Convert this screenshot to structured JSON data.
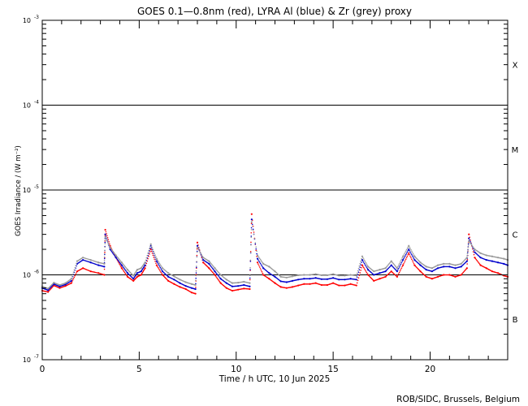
{
  "chart_data": {
    "type": "scatter",
    "title": "GOES 0.1—0.8nm (red), LYRA Al (blue) & Zr (grey) proxy",
    "xlabel": "Time / h UTC, 10 Jun 2025",
    "ylabel": "GOES Irradiance / (W m⁻²)",
    "x_range": [
      0,
      24
    ],
    "y_scale": "log",
    "y_range": [
      1e-07,
      0.001
    ],
    "x_ticks": [
      {
        "value": 0,
        "label": "0"
      },
      {
        "value": 5,
        "label": "5"
      },
      {
        "value": 10,
        "label": "10"
      },
      {
        "value": 15,
        "label": "15"
      },
      {
        "value": 20,
        "label": "20"
      }
    ],
    "y_ticks": [
      {
        "exp": -3,
        "label": "10",
        "sup": "-3"
      },
      {
        "exp": -4,
        "label": "10",
        "sup": "-4"
      },
      {
        "exp": -5,
        "label": "10",
        "sup": "-5"
      },
      {
        "exp": -6,
        "label": "10",
        "sup": "-6"
      },
      {
        "exp": -7,
        "label": "10",
        "sup": "-7"
      }
    ],
    "class_lines": [
      0.0001,
      1e-05,
      1e-06
    ],
    "flare_classes": [
      {
        "label": "X",
        "value": 0.0003
      },
      {
        "label": "M",
        "value": 3e-05
      },
      {
        "label": "C",
        "value": 3e-06
      },
      {
        "label": "B",
        "value": 3e-07
      }
    ],
    "series": [
      {
        "color": "#ff0000",
        "points": [
          [
            0,
            6.5e-07
          ],
          [
            0.3,
            6.3e-07
          ],
          [
            0.6,
            7.5e-07
          ],
          [
            0.9,
            7e-07
          ],
          [
            1.2,
            7.4e-07
          ],
          [
            1.5,
            8e-07
          ],
          [
            1.8,
            1.1e-06
          ],
          [
            2.1,
            1.2e-06
          ],
          [
            2.5,
            1.1e-06
          ],
          [
            2.9,
            1.05e-06
          ],
          [
            3.2,
            1e-06
          ],
          [
            3.25,
            3.4e-06
          ],
          [
            3.5,
            2.2e-06
          ],
          [
            3.8,
            1.6e-06
          ],
          [
            4.1,
            1.2e-06
          ],
          [
            4.4,
            9.5e-07
          ],
          [
            4.7,
            8.5e-07
          ],
          [
            4.9,
            9.5e-07
          ],
          [
            5.1,
            1e-06
          ],
          [
            5.3,
            1.2e-06
          ],
          [
            5.6,
            2e-06
          ],
          [
            5.9,
            1.3e-06
          ],
          [
            6.2,
            1e-06
          ],
          [
            6.5,
            8.5e-07
          ],
          [
            6.8,
            7.8e-07
          ],
          [
            7.1,
            7.2e-07
          ],
          [
            7.4,
            6.8e-07
          ],
          [
            7.7,
            6.2e-07
          ],
          [
            7.9,
            6e-07
          ],
          [
            8.0,
            2.4e-06
          ],
          [
            8.3,
            1.4e-06
          ],
          [
            8.6,
            1.2e-06
          ],
          [
            8.9,
            1e-06
          ],
          [
            9.2,
            8e-07
          ],
          [
            9.5,
            7e-07
          ],
          [
            9.8,
            6.5e-07
          ],
          [
            10.1,
            6.7e-07
          ],
          [
            10.4,
            6.9e-07
          ],
          [
            10.7,
            6.8e-07
          ],
          [
            10.8,
            5.2e-06
          ],
          [
            11.1,
            1.4e-06
          ],
          [
            11.4,
            1e-06
          ],
          [
            11.7,
            9e-07
          ],
          [
            12.0,
            8e-07
          ],
          [
            12.3,
            7.2e-07
          ],
          [
            12.6,
            7e-07
          ],
          [
            12.9,
            7.2e-07
          ],
          [
            13.2,
            7.5e-07
          ],
          [
            13.5,
            7.8e-07
          ],
          [
            13.8,
            7.8e-07
          ],
          [
            14.1,
            8e-07
          ],
          [
            14.4,
            7.6e-07
          ],
          [
            14.7,
            7.6e-07
          ],
          [
            15.0,
            8e-07
          ],
          [
            15.3,
            7.5e-07
          ],
          [
            15.6,
            7.5e-07
          ],
          [
            15.9,
            7.8e-07
          ],
          [
            16.2,
            7.5e-07
          ],
          [
            16.5,
            1.3e-06
          ],
          [
            16.8,
            1e-06
          ],
          [
            17.1,
            8.5e-07
          ],
          [
            17.4,
            9e-07
          ],
          [
            17.7,
            9.5e-07
          ],
          [
            18.0,
            1.1e-06
          ],
          [
            18.3,
            9.5e-07
          ],
          [
            18.6,
            1.3e-06
          ],
          [
            18.9,
            1.8e-06
          ],
          [
            19.2,
            1.3e-06
          ],
          [
            19.5,
            1.1e-06
          ],
          [
            19.8,
            9.5e-07
          ],
          [
            20.1,
            9e-07
          ],
          [
            20.4,
            9.5e-07
          ],
          [
            20.7,
            1e-06
          ],
          [
            21.0,
            1e-06
          ],
          [
            21.3,
            9.5e-07
          ],
          [
            21.6,
            1e-06
          ],
          [
            21.9,
            1.2e-06
          ],
          [
            22.0,
            3e-06
          ],
          [
            22.3,
            1.6e-06
          ],
          [
            22.6,
            1.3e-06
          ],
          [
            22.9,
            1.2e-06
          ],
          [
            23.2,
            1.1e-06
          ],
          [
            23.5,
            1.05e-06
          ],
          [
            23.8,
            9.8e-07
          ],
          [
            24.0,
            9.5e-07
          ]
        ]
      },
      {
        "color": "#0000cc",
        "points": [
          [
            0,
            7e-07
          ],
          [
            0.3,
            6.6e-07
          ],
          [
            0.6,
            7.8e-07
          ],
          [
            0.9,
            7.3e-07
          ],
          [
            1.2,
            7.7e-07
          ],
          [
            1.5,
            8.5e-07
          ],
          [
            1.8,
            1.35e-06
          ],
          [
            2.1,
            1.5e-06
          ],
          [
            2.5,
            1.4e-06
          ],
          [
            2.9,
            1.3e-06
          ],
          [
            3.2,
            1.25e-06
          ],
          [
            3.25,
            3e-06
          ],
          [
            3.5,
            2e-06
          ],
          [
            3.8,
            1.6e-06
          ],
          [
            4.1,
            1.3e-06
          ],
          [
            4.4,
            1.05e-06
          ],
          [
            4.7,
            9e-07
          ],
          [
            4.9,
            1.05e-06
          ],
          [
            5.1,
            1.1e-06
          ],
          [
            5.3,
            1.3e-06
          ],
          [
            5.6,
            2.2e-06
          ],
          [
            5.9,
            1.45e-06
          ],
          [
            6.2,
            1.1e-06
          ],
          [
            6.5,
            9.5e-07
          ],
          [
            6.8,
            8.8e-07
          ],
          [
            7.1,
            8e-07
          ],
          [
            7.4,
            7.4e-07
          ],
          [
            7.7,
            7e-07
          ],
          [
            7.9,
            6.8e-07
          ],
          [
            8.0,
            2.2e-06
          ],
          [
            8.3,
            1.5e-06
          ],
          [
            8.6,
            1.35e-06
          ],
          [
            8.9,
            1.1e-06
          ],
          [
            9.2,
            9e-07
          ],
          [
            9.5,
            8e-07
          ],
          [
            9.8,
            7.3e-07
          ],
          [
            10.1,
            7.4e-07
          ],
          [
            10.4,
            7.6e-07
          ],
          [
            10.7,
            7.3e-07
          ],
          [
            10.8,
            4.5e-06
          ],
          [
            11.1,
            1.55e-06
          ],
          [
            11.4,
            1.2e-06
          ],
          [
            11.7,
            1.05e-06
          ],
          [
            12.0,
            9.5e-07
          ],
          [
            12.3,
            8.4e-07
          ],
          [
            12.6,
            8.2e-07
          ],
          [
            12.9,
            8.5e-07
          ],
          [
            13.2,
            8.8e-07
          ],
          [
            13.5,
            9e-07
          ],
          [
            13.8,
            9e-07
          ],
          [
            14.1,
            9.2e-07
          ],
          [
            14.4,
            8.9e-07
          ],
          [
            14.7,
            8.9e-07
          ],
          [
            15.0,
            9.2e-07
          ],
          [
            15.3,
            8.8e-07
          ],
          [
            15.6,
            8.8e-07
          ],
          [
            15.9,
            9e-07
          ],
          [
            16.2,
            8.8e-07
          ],
          [
            16.5,
            1.5e-06
          ],
          [
            16.8,
            1.15e-06
          ],
          [
            17.1,
            1e-06
          ],
          [
            17.4,
            1.05e-06
          ],
          [
            17.7,
            1.1e-06
          ],
          [
            18.0,
            1.3e-06
          ],
          [
            18.3,
            1.1e-06
          ],
          [
            18.6,
            1.5e-06
          ],
          [
            18.9,
            2e-06
          ],
          [
            19.2,
            1.5e-06
          ],
          [
            19.5,
            1.3e-06
          ],
          [
            19.8,
            1.15e-06
          ],
          [
            20.1,
            1.1e-06
          ],
          [
            20.4,
            1.2e-06
          ],
          [
            20.7,
            1.25e-06
          ],
          [
            21.0,
            1.25e-06
          ],
          [
            21.3,
            1.2e-06
          ],
          [
            21.6,
            1.25e-06
          ],
          [
            21.9,
            1.45e-06
          ],
          [
            22.0,
            2.7e-06
          ],
          [
            22.3,
            1.85e-06
          ],
          [
            22.6,
            1.6e-06
          ],
          [
            22.9,
            1.5e-06
          ],
          [
            23.2,
            1.45e-06
          ],
          [
            23.5,
            1.4e-06
          ],
          [
            23.8,
            1.35e-06
          ],
          [
            24.0,
            1.3e-06
          ]
        ]
      },
      {
        "color": "#999999",
        "points": [
          [
            0,
            7.3e-07
          ],
          [
            0.3,
            6.9e-07
          ],
          [
            0.6,
            8.1e-07
          ],
          [
            0.9,
            7.6e-07
          ],
          [
            1.2,
            8e-07
          ],
          [
            1.5,
            9e-07
          ],
          [
            1.8,
            1.45e-06
          ],
          [
            2.1,
            1.6e-06
          ],
          [
            2.5,
            1.5e-06
          ],
          [
            2.9,
            1.4e-06
          ],
          [
            3.2,
            1.35e-06
          ],
          [
            3.25,
            2.8e-06
          ],
          [
            3.5,
            2.1e-06
          ],
          [
            3.8,
            1.7e-06
          ],
          [
            4.1,
            1.4e-06
          ],
          [
            4.4,
            1.15e-06
          ],
          [
            4.7,
            9.8e-07
          ],
          [
            4.9,
            1.15e-06
          ],
          [
            5.1,
            1.2e-06
          ],
          [
            5.3,
            1.4e-06
          ],
          [
            5.6,
            2.3e-06
          ],
          [
            5.9,
            1.55e-06
          ],
          [
            6.2,
            1.2e-06
          ],
          [
            6.5,
            1.05e-06
          ],
          [
            6.8,
            9.6e-07
          ],
          [
            7.1,
            8.8e-07
          ],
          [
            7.4,
            8.2e-07
          ],
          [
            7.7,
            7.8e-07
          ],
          [
            7.9,
            7.6e-07
          ],
          [
            8.0,
            2.1e-06
          ],
          [
            8.3,
            1.6e-06
          ],
          [
            8.6,
            1.45e-06
          ],
          [
            8.9,
            1.2e-06
          ],
          [
            9.2,
            1e-06
          ],
          [
            9.5,
            8.8e-07
          ],
          [
            9.8,
            8e-07
          ],
          [
            10.1,
            8.1e-07
          ],
          [
            10.4,
            8.3e-07
          ],
          [
            10.7,
            8e-07
          ],
          [
            10.8,
            4.2e-06
          ],
          [
            11.1,
            1.7e-06
          ],
          [
            11.4,
            1.35e-06
          ],
          [
            11.7,
            1.25e-06
          ],
          [
            12.0,
            1.1e-06
          ],
          [
            12.3,
            9.5e-07
          ],
          [
            12.6,
            9.3e-07
          ],
          [
            12.9,
            9.6e-07
          ],
          [
            13.2,
            9.9e-07
          ],
          [
            13.5,
            1e-06
          ],
          [
            13.8,
            1e-06
          ],
          [
            14.1,
            1.02e-06
          ],
          [
            14.4,
            9.9e-07
          ],
          [
            14.7,
            9.9e-07
          ],
          [
            15.0,
            1.02e-06
          ],
          [
            15.3,
            9.8e-07
          ],
          [
            15.6,
            9.8e-07
          ],
          [
            15.9,
            1e-06
          ],
          [
            16.2,
            9.8e-07
          ],
          [
            16.5,
            1.65e-06
          ],
          [
            16.8,
            1.25e-06
          ],
          [
            17.1,
            1.1e-06
          ],
          [
            17.4,
            1.15e-06
          ],
          [
            17.7,
            1.2e-06
          ],
          [
            18.0,
            1.45e-06
          ],
          [
            18.3,
            1.2e-06
          ],
          [
            18.6,
            1.65e-06
          ],
          [
            18.9,
            2.2e-06
          ],
          [
            19.2,
            1.65e-06
          ],
          [
            19.5,
            1.4e-06
          ],
          [
            19.8,
            1.25e-06
          ],
          [
            20.1,
            1.2e-06
          ],
          [
            20.4,
            1.3e-06
          ],
          [
            20.7,
            1.35e-06
          ],
          [
            21.0,
            1.35e-06
          ],
          [
            21.3,
            1.3e-06
          ],
          [
            21.6,
            1.35e-06
          ],
          [
            21.9,
            1.6e-06
          ],
          [
            22.0,
            2.5e-06
          ],
          [
            22.3,
            2e-06
          ],
          [
            22.6,
            1.8e-06
          ],
          [
            22.9,
            1.7e-06
          ],
          [
            23.2,
            1.65e-06
          ],
          [
            23.5,
            1.6e-06
          ],
          [
            23.8,
            1.55e-06
          ],
          [
            24.0,
            1.5e-06
          ]
        ]
      }
    ]
  },
  "credit": "ROB/SIDC, Brussels, Belgium"
}
